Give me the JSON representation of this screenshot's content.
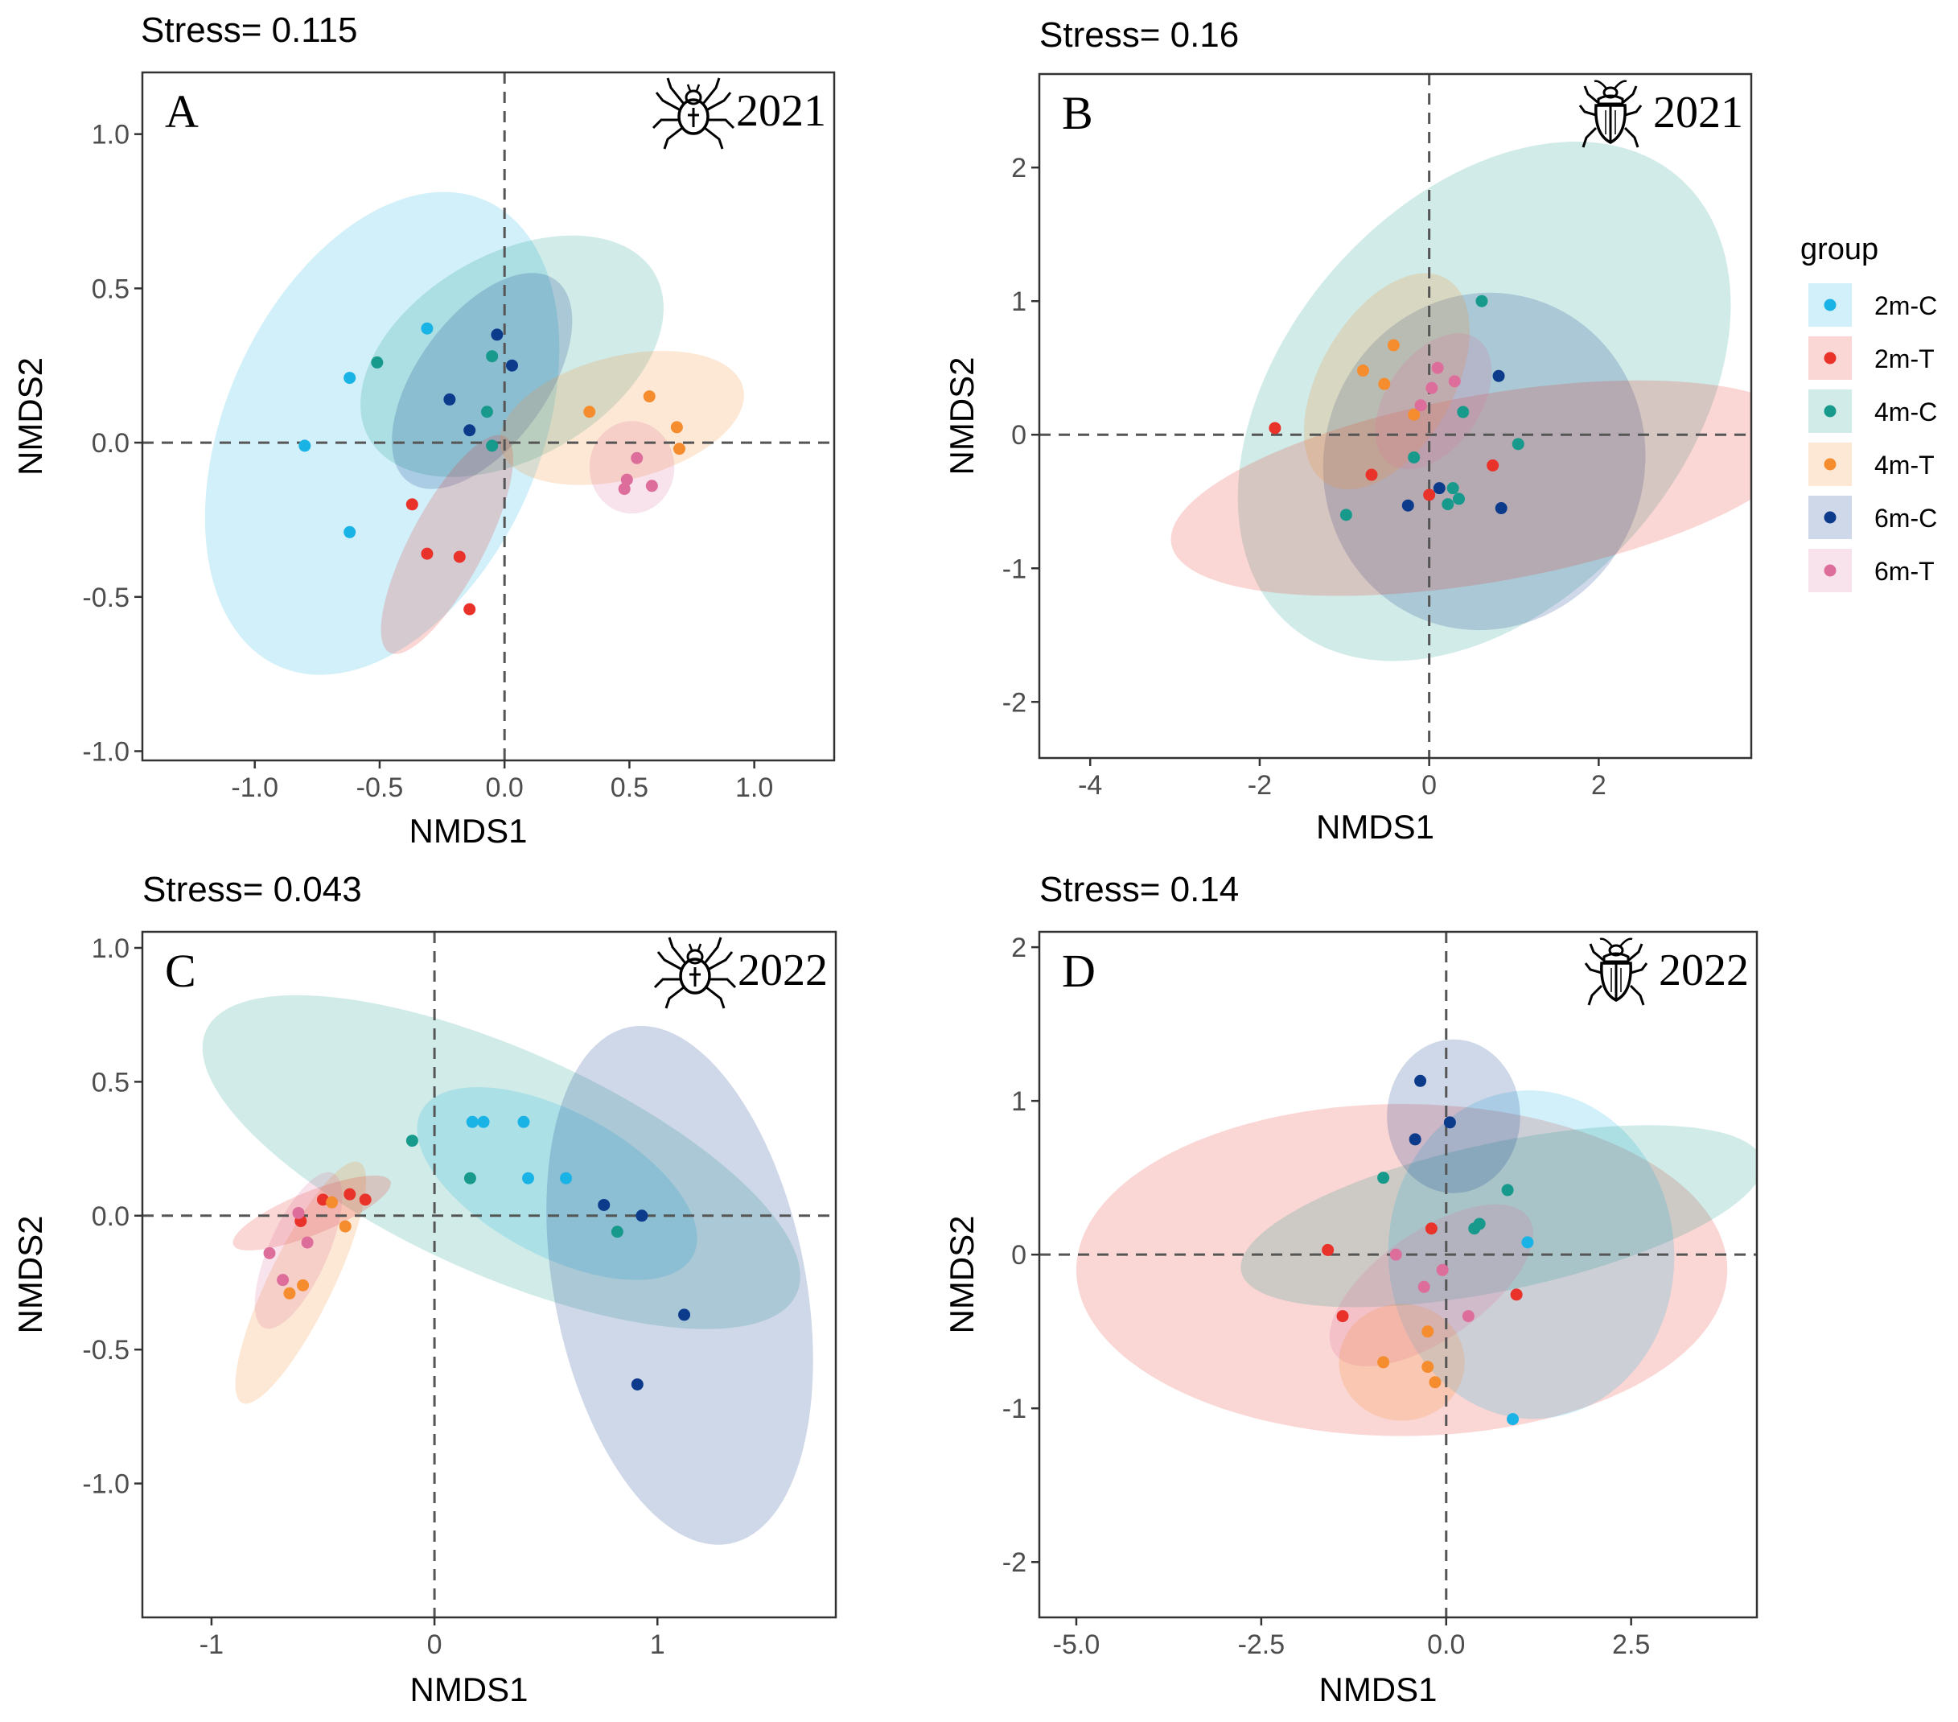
{
  "colors": {
    "2m-C": "#1ab3e6",
    "2m-T": "#e8322a",
    "4m-C": "#17998c",
    "4m-T": "#f58c2e",
    "6m-C": "#0d3b8c",
    "6m-T": "#dd6e9b"
  },
  "legend": {
    "title": "group",
    "entries": [
      "2m-C",
      "2m-T",
      "4m-C",
      "4m-T",
      "6m-C",
      "6m-T"
    ]
  },
  "icons": {
    "spider": "spider-icon",
    "beetle": "beetle-icon"
  },
  "chart_data": [
    {
      "id": "A",
      "type": "scatter",
      "title": "Stress= 0.115",
      "letter": "A",
      "year": "2021",
      "icon": "spider",
      "xlabel": "NMDS1",
      "ylabel": "NMDS2",
      "xlim": [
        -1.45,
        1.32
      ],
      "ylim": [
        -1.03,
        1.2
      ],
      "xticks": [
        -1.0,
        -0.5,
        0.0,
        0.5,
        1.0
      ],
      "xtick_labels": [
        "-1.0",
        "-0.5",
        "0.0",
        "0.5",
        "1.0"
      ],
      "yticks": [
        -1.0,
        -0.5,
        0.0,
        0.5,
        1.0
      ],
      "ytick_labels": [
        "-1.0",
        "-0.5",
        "0.0",
        "0.5",
        "1.0"
      ],
      "ellipses": [
        {
          "group": "2m-C",
          "cx": -0.49,
          "cy": 0.03,
          "rx": 1.02,
          "ry": 0.51,
          "angle": -66
        },
        {
          "group": "4m-C",
          "cx": 0.03,
          "cy": 0.28,
          "rx": 0.66,
          "ry": 0.33,
          "angle": -30
        },
        {
          "group": "6m-C",
          "cx": -0.09,
          "cy": 0.2,
          "rx": 0.5,
          "ry": 0.21,
          "angle": -54
        },
        {
          "group": "2m-T",
          "cx": -0.23,
          "cy": -0.33,
          "rx": 0.49,
          "ry": 0.12,
          "angle": -62
        },
        {
          "group": "4m-T",
          "cx": 0.47,
          "cy": 0.08,
          "rx": 0.5,
          "ry": 0.2,
          "angle": -14
        },
        {
          "group": "6m-T",
          "cx": 0.51,
          "cy": -0.08,
          "rx": 0.17,
          "ry": 0.15,
          "angle": 0
        }
      ],
      "points": [
        {
          "group": "2m-C",
          "x": -0.8,
          "y": -0.01
        },
        {
          "group": "2m-C",
          "x": -0.62,
          "y": 0.21
        },
        {
          "group": "2m-C",
          "x": -0.31,
          "y": 0.37
        },
        {
          "group": "2m-C",
          "x": -0.62,
          "y": -0.29
        },
        {
          "group": "4m-C",
          "x": -0.51,
          "y": 0.26
        },
        {
          "group": "4m-C",
          "x": -0.05,
          "y": 0.28
        },
        {
          "group": "4m-C",
          "x": -0.07,
          "y": 0.1
        },
        {
          "group": "4m-C",
          "x": -0.05,
          "y": -0.01
        },
        {
          "group": "6m-C",
          "x": -0.22,
          "y": 0.14
        },
        {
          "group": "6m-C",
          "x": -0.03,
          "y": 0.35
        },
        {
          "group": "6m-C",
          "x": 0.03,
          "y": 0.25
        },
        {
          "group": "6m-C",
          "x": -0.14,
          "y": 0.04
        },
        {
          "group": "2m-T",
          "x": -0.37,
          "y": -0.2
        },
        {
          "group": "2m-T",
          "x": -0.31,
          "y": -0.36
        },
        {
          "group": "2m-T",
          "x": -0.18,
          "y": -0.37
        },
        {
          "group": "2m-T",
          "x": -0.14,
          "y": -0.54
        },
        {
          "group": "4m-T",
          "x": 0.34,
          "y": 0.1
        },
        {
          "group": "4m-T",
          "x": 0.58,
          "y": 0.15
        },
        {
          "group": "4m-T",
          "x": 0.69,
          "y": 0.05
        },
        {
          "group": "4m-T",
          "x": 0.7,
          "y": -0.02
        },
        {
          "group": "6m-T",
          "x": 0.53,
          "y": -0.05
        },
        {
          "group": "6m-T",
          "x": 0.49,
          "y": -0.12
        },
        {
          "group": "6m-T",
          "x": 0.48,
          "y": -0.15
        },
        {
          "group": "6m-T",
          "x": 0.59,
          "y": -0.14
        }
      ]
    },
    {
      "id": "B",
      "type": "scatter",
      "title": "Stress= 0.16",
      "letter": "B",
      "year": "2021",
      "icon": "beetle",
      "xlabel": "NMDS1",
      "ylabel": "NMDS2",
      "xlim": [
        -4.6,
        3.8
      ],
      "ylim": [
        -2.42,
        2.7
      ],
      "xticks": [
        -4,
        -2,
        0,
        2
      ],
      "xtick_labels": [
        "-4",
        "-2",
        "0",
        "2"
      ],
      "yticks": [
        -2,
        -1,
        0,
        1,
        2
      ],
      "ytick_labels": [
        "-2",
        "-1",
        "0",
        "1",
        "2"
      ],
      "ellipses": [
        {
          "group": "4m-C",
          "cx": 0.65,
          "cy": 0.25,
          "rx": 3.5,
          "ry": 1.5,
          "angle": -49
        },
        {
          "group": "6m-C",
          "cx": 0.65,
          "cy": -0.2,
          "rx": 2.0,
          "ry": 1.2,
          "angle": -72
        },
        {
          "group": "2m-T",
          "cx": 0.7,
          "cy": -0.4,
          "rx": 3.8,
          "ry": 0.7,
          "angle": -10
        },
        {
          "group": "4m-T",
          "cx": -0.5,
          "cy": 0.4,
          "rx": 1.4,
          "ry": 0.5,
          "angle": -60
        },
        {
          "group": "6m-T",
          "cx": 0.05,
          "cy": 0.25,
          "rx": 0.9,
          "ry": 0.35,
          "angle": -55
        }
      ],
      "points": [
        {
          "group": "2m-T",
          "x": -1.82,
          "y": 0.05
        },
        {
          "group": "2m-T",
          "x": -0.68,
          "y": -0.3
        },
        {
          "group": "2m-T",
          "x": 0.0,
          "y": -0.45
        },
        {
          "group": "2m-T",
          "x": 0.75,
          "y": -0.23
        },
        {
          "group": "4m-T",
          "x": -0.42,
          "y": 0.67
        },
        {
          "group": "4m-T",
          "x": -0.78,
          "y": 0.48
        },
        {
          "group": "4m-T",
          "x": -0.53,
          "y": 0.38
        },
        {
          "group": "4m-T",
          "x": -0.18,
          "y": 0.15
        },
        {
          "group": "6m-T",
          "x": 0.1,
          "y": 0.5
        },
        {
          "group": "6m-T",
          "x": 0.3,
          "y": 0.4
        },
        {
          "group": "6m-T",
          "x": 0.03,
          "y": 0.35
        },
        {
          "group": "6m-T",
          "x": -0.1,
          "y": 0.22
        },
        {
          "group": "4m-C",
          "x": 0.62,
          "y": 1.0
        },
        {
          "group": "4m-C",
          "x": 0.4,
          "y": 0.17
        },
        {
          "group": "4m-C",
          "x": 1.05,
          "y": -0.07
        },
        {
          "group": "4m-C",
          "x": -0.98,
          "y": -0.6
        },
        {
          "group": "4m-C",
          "x": -0.18,
          "y": -0.17
        },
        {
          "group": "4m-C",
          "x": 0.28,
          "y": -0.4
        },
        {
          "group": "4m-C",
          "x": 0.35,
          "y": -0.48
        },
        {
          "group": "4m-C",
          "x": 0.22,
          "y": -0.52
        },
        {
          "group": "6m-C",
          "x": 0.82,
          "y": 0.44
        },
        {
          "group": "6m-C",
          "x": 0.12,
          "y": -0.4
        },
        {
          "group": "6m-C",
          "x": -0.25,
          "y": -0.53
        },
        {
          "group": "6m-C",
          "x": 0.85,
          "y": -0.55
        }
      ]
    },
    {
      "id": "C",
      "type": "scatter",
      "title": "Stress= 0.043",
      "letter": "C",
      "year": "2022",
      "icon": "spider",
      "xlabel": "NMDS1",
      "ylabel": "NMDS2",
      "xlim": [
        -1.31,
        1.8
      ],
      "ylim": [
        -1.5,
        1.06
      ],
      "xticks": [
        -1,
        0,
        1
      ],
      "xtick_labels": [
        "-1",
        "0",
        "1"
      ],
      "yticks": [
        -1.0,
        -0.5,
        0.0,
        0.5,
        1.0
      ],
      "ytick_labels": [
        "-1.0",
        "-0.5",
        "0.0",
        "0.5",
        "1.0"
      ],
      "ellipses": [
        {
          "group": "4m-C",
          "cx": 0.3,
          "cy": 0.2,
          "rx": 1.45,
          "ry": 0.42,
          "angle": 24
        },
        {
          "group": "2m-C",
          "cx": 0.55,
          "cy": 0.12,
          "rx": 0.69,
          "ry": 0.27,
          "angle": 28
        },
        {
          "group": "6m-C",
          "cx": 1.1,
          "cy": -0.26,
          "rx": 1.18,
          "ry": 0.47,
          "angle": 79
        },
        {
          "group": "4m-T",
          "cx": -0.6,
          "cy": -0.25,
          "rx": 0.6,
          "ry": 0.12,
          "angle": -64
        },
        {
          "group": "2m-T",
          "cx": -0.55,
          "cy": 0.01,
          "rx": 0.38,
          "ry": 0.08,
          "angle": -22
        },
        {
          "group": "6m-T",
          "cx": -0.61,
          "cy": -0.13,
          "rx": 0.38,
          "ry": 0.11,
          "angle": -66
        }
      ],
      "points": [
        {
          "group": "2m-C",
          "x": 0.17,
          "y": 0.35
        },
        {
          "group": "2m-C",
          "x": 0.22,
          "y": 0.35
        },
        {
          "group": "2m-C",
          "x": 0.4,
          "y": 0.35
        },
        {
          "group": "2m-C",
          "x": 0.42,
          "y": 0.14
        },
        {
          "group": "2m-C",
          "x": 0.59,
          "y": 0.14
        },
        {
          "group": "4m-C",
          "x": -0.1,
          "y": 0.28
        },
        {
          "group": "4m-C",
          "x": 0.16,
          "y": 0.14
        },
        {
          "group": "4m-C",
          "x": 0.82,
          "y": -0.06
        },
        {
          "group": "6m-C",
          "x": 0.76,
          "y": 0.04
        },
        {
          "group": "6m-C",
          "x": 0.93,
          "y": 0.0
        },
        {
          "group": "6m-C",
          "x": 1.12,
          "y": -0.37
        },
        {
          "group": "6m-C",
          "x": 0.91,
          "y": -0.63
        },
        {
          "group": "2m-T",
          "x": -0.6,
          "y": -0.02
        },
        {
          "group": "2m-T",
          "x": -0.5,
          "y": 0.06
        },
        {
          "group": "2m-T",
          "x": -0.38,
          "y": 0.08
        },
        {
          "group": "2m-T",
          "x": -0.31,
          "y": 0.06
        },
        {
          "group": "4m-T",
          "x": -0.46,
          "y": 0.05
        },
        {
          "group": "4m-T",
          "x": -0.4,
          "y": -0.04
        },
        {
          "group": "4m-T",
          "x": -0.59,
          "y": -0.26
        },
        {
          "group": "4m-T",
          "x": -0.65,
          "y": -0.29
        },
        {
          "group": "6m-T",
          "x": -0.61,
          "y": 0.01
        },
        {
          "group": "6m-T",
          "x": -0.57,
          "y": -0.1
        },
        {
          "group": "6m-T",
          "x": -0.74,
          "y": -0.14
        },
        {
          "group": "6m-T",
          "x": -0.68,
          "y": -0.24
        }
      ]
    },
    {
      "id": "D",
      "type": "scatter",
      "title": "Stress= 0.14",
      "letter": "D",
      "year": "2022",
      "icon": "beetle",
      "xlabel": "NMDS1",
      "ylabel": "NMDS2",
      "xlim": [
        -5.5,
        4.2
      ],
      "ylim": [
        -2.36,
        2.1
      ],
      "xticks": [
        -5.0,
        -2.5,
        0.0,
        2.5
      ],
      "xtick_labels": [
        "-5.0",
        "-2.5",
        "0.0",
        "2.5"
      ],
      "yticks": [
        -2,
        -1,
        0,
        1,
        2
      ],
      "ytick_labels": [
        "-2",
        "-1",
        "0",
        "1",
        "2"
      ],
      "ellipses": [
        {
          "group": "2m-T",
          "cx": -0.6,
          "cy": -0.1,
          "rx": 4.4,
          "ry": 1.08,
          "angle": 0
        },
        {
          "group": "2m-C",
          "cx": 1.15,
          "cy": 0.0,
          "rx": 2.22,
          "ry": 0.93,
          "angle": 87
        },
        {
          "group": "4m-C",
          "cx": 0.75,
          "cy": 0.25,
          "rx": 3.6,
          "ry": 0.48,
          "angle": -12
        },
        {
          "group": "6m-C",
          "cx": 0.1,
          "cy": 0.9,
          "rx": 0.9,
          "ry": 0.5,
          "angle": 0
        },
        {
          "group": "6m-T",
          "cx": -0.2,
          "cy": -0.2,
          "rx": 1.6,
          "ry": 0.35,
          "angle": -35
        },
        {
          "group": "4m-T",
          "cx": -0.6,
          "cy": -0.7,
          "rx": 0.85,
          "ry": 0.38,
          "angle": 0
        }
      ],
      "points": [
        {
          "group": "2m-C",
          "x": 1.1,
          "y": 0.08
        },
        {
          "group": "2m-C",
          "x": 0.9,
          "y": -1.07
        },
        {
          "group": "4m-C",
          "x": -0.85,
          "y": 0.5
        },
        {
          "group": "4m-C",
          "x": 0.83,
          "y": 0.42
        },
        {
          "group": "4m-C",
          "x": 0.45,
          "y": 0.2
        },
        {
          "group": "4m-C",
          "x": 0.38,
          "y": 0.17
        },
        {
          "group": "6m-C",
          "x": -0.35,
          "y": 1.13
        },
        {
          "group": "6m-C",
          "x": -0.42,
          "y": 0.75
        },
        {
          "group": "6m-C",
          "x": 0.05,
          "y": 0.86
        },
        {
          "group": "2m-T",
          "x": -1.6,
          "y": 0.03
        },
        {
          "group": "2m-T",
          "x": -1.4,
          "y": -0.4
        },
        {
          "group": "2m-T",
          "x": -0.2,
          "y": 0.17
        },
        {
          "group": "2m-T",
          "x": 0.95,
          "y": -0.26
        },
        {
          "group": "4m-T",
          "x": -0.85,
          "y": -0.7
        },
        {
          "group": "4m-T",
          "x": -0.25,
          "y": -0.5
        },
        {
          "group": "4m-T",
          "x": -0.25,
          "y": -0.73
        },
        {
          "group": "4m-T",
          "x": -0.15,
          "y": -0.83
        },
        {
          "group": "6m-T",
          "x": -0.68,
          "y": 0.0
        },
        {
          "group": "6m-T",
          "x": -0.05,
          "y": -0.1
        },
        {
          "group": "6m-T",
          "x": -0.3,
          "y": -0.21
        },
        {
          "group": "6m-T",
          "x": 0.3,
          "y": -0.4
        }
      ]
    }
  ]
}
